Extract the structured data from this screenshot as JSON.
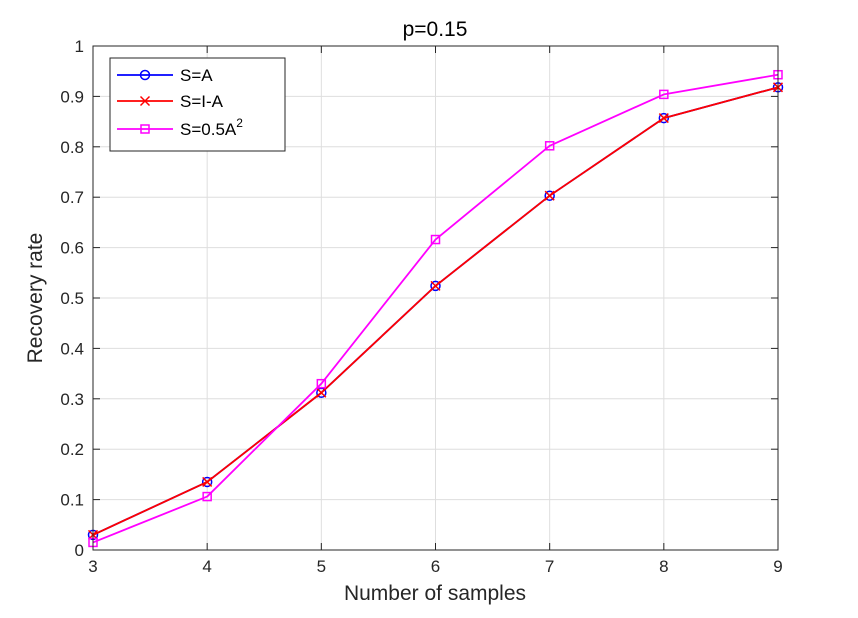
{
  "chart_data": {
    "type": "line",
    "title": "p=0.15",
    "xlabel": "Number of samples",
    "ylabel": "Recovery rate",
    "x": [
      3,
      4,
      5,
      6,
      7,
      8,
      9
    ],
    "xlim": [
      3,
      9
    ],
    "ylim": [
      0,
      1
    ],
    "xticks": [
      "3",
      "4",
      "5",
      "6",
      "7",
      "8",
      "9"
    ],
    "yticks": [
      "0",
      "0.1",
      "0.2",
      "0.3",
      "0.4",
      "0.5",
      "0.6",
      "0.7",
      "0.8",
      "0.9",
      "1"
    ],
    "grid": true,
    "legend_position": "top-left",
    "series": [
      {
        "name": "S=A",
        "legend_base": "S=A",
        "legend_sup": "",
        "color": "#0000ff",
        "marker": "circle",
        "values": [
          0.03,
          0.135,
          0.312,
          0.524,
          0.703,
          0.857,
          0.918
        ]
      },
      {
        "name": "S=I-A",
        "legend_base": "S=I-A",
        "legend_sup": "",
        "color": "#ff0000",
        "marker": "x",
        "values": [
          0.03,
          0.135,
          0.312,
          0.524,
          0.703,
          0.857,
          0.918
        ]
      },
      {
        "name": "S=0.5A^2",
        "legend_base": "S=0.5A",
        "legend_sup": "2",
        "color": "#ff00ff",
        "marker": "square",
        "values": [
          0.015,
          0.106,
          0.33,
          0.616,
          0.802,
          0.904,
          0.943
        ]
      }
    ]
  }
}
